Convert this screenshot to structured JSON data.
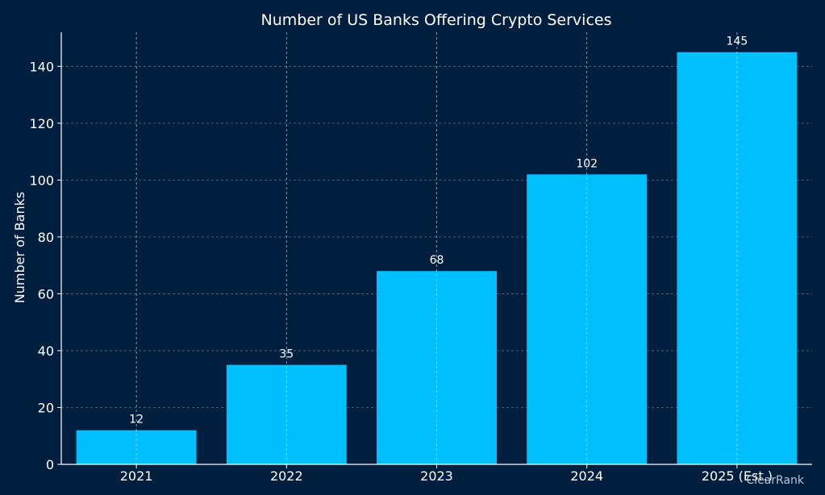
{
  "chart_data": {
    "type": "bar",
    "title": "Number of US Banks Offering Crypto Services",
    "xlabel": "",
    "ylabel": "Number of Banks",
    "categories": [
      "2021",
      "2022",
      "2023",
      "2024",
      "2025 (Est.)"
    ],
    "values": [
      12,
      35,
      68,
      102,
      145
    ],
    "ylim": [
      0,
      152
    ],
    "yticks": [
      0,
      20,
      40,
      60,
      80,
      100,
      120,
      140
    ],
    "grid": true,
    "legend": "none",
    "colors": {
      "background": "#001f3f",
      "bar": "#00bfff",
      "text": "#ffffff",
      "grid": "#8fa3b8"
    }
  },
  "watermark": "ClearRank"
}
